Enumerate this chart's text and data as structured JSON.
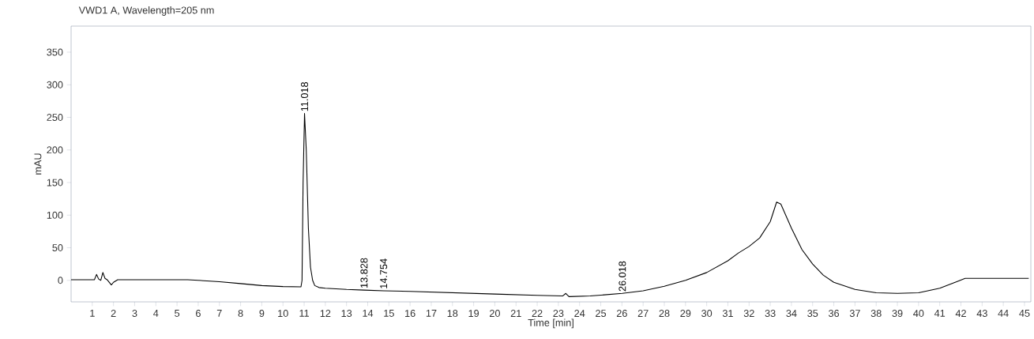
{
  "chart_data": {
    "type": "line",
    "title": "VWD1 A, Wavelength=205 nm",
    "xlabel": "Time [min]",
    "ylabel": "mAU",
    "x": [
      0,
      1.1,
      1.2,
      1.3,
      1.4,
      1.5,
      1.6,
      1.7,
      1.8,
      1.9,
      2.0,
      2.2,
      5.5,
      6,
      7,
      8,
      9,
      10,
      10.85,
      10.9,
      10.95,
      11.018,
      11.1,
      11.2,
      11.3,
      11.4,
      11.5,
      11.7,
      12,
      13,
      13.828,
      14.754,
      16,
      18,
      20,
      22,
      23.2,
      23.35,
      23.5,
      24.5,
      26.018,
      27,
      28,
      29,
      30,
      31,
      31.5,
      32,
      32.5,
      33,
      33.3,
      33.5,
      34,
      34.5,
      35,
      35.5,
      36,
      37,
      38,
      39,
      40,
      41,
      41.8,
      42.2,
      45.2
    ],
    "series": [
      {
        "color": "#000000",
        "values": [
          1,
          1,
          9,
          2,
          0,
          12,
          3,
          1,
          -3,
          -7,
          -3,
          1,
          1,
          0,
          -2,
          -5,
          -8,
          -9.5,
          -10,
          0,
          150,
          256,
          200,
          80,
          20,
          0,
          -8,
          -11,
          -12,
          -14,
          -15,
          -16,
          -17,
          -19,
          -21,
          -23,
          -24,
          -20,
          -25,
          -24,
          -20,
          -16,
          -9,
          0,
          12,
          30,
          42,
          52,
          65,
          90,
          120,
          117,
          80,
          47,
          25,
          8,
          -3,
          -14,
          -19,
          -20,
          -19,
          -12,
          -2,
          3,
          3
        ]
      }
    ],
    "xlim": [
      0,
      45.3
    ],
    "ylim": [
      -33,
      390
    ],
    "xticks": [
      1,
      2,
      3,
      4,
      5,
      6,
      7,
      8,
      9,
      10,
      11,
      12,
      13,
      14,
      15,
      16,
      17,
      18,
      19,
      20,
      21,
      22,
      23,
      24,
      25,
      26,
      27,
      28,
      29,
      30,
      31,
      32,
      33,
      34,
      35,
      36,
      37,
      38,
      39,
      40,
      41,
      42,
      43,
      44,
      45
    ],
    "yticks": [
      0,
      50,
      100,
      150,
      200,
      250,
      300,
      350
    ],
    "annotations": [
      {
        "text": "11.018",
        "x": 11.018,
        "y": 256
      },
      {
        "text": "13.828",
        "x": 13.828,
        "y": -15
      },
      {
        "text": "14.754",
        "x": 14.754,
        "y": -16
      },
      {
        "text": "26.018",
        "x": 26.018,
        "y": -20
      }
    ]
  }
}
